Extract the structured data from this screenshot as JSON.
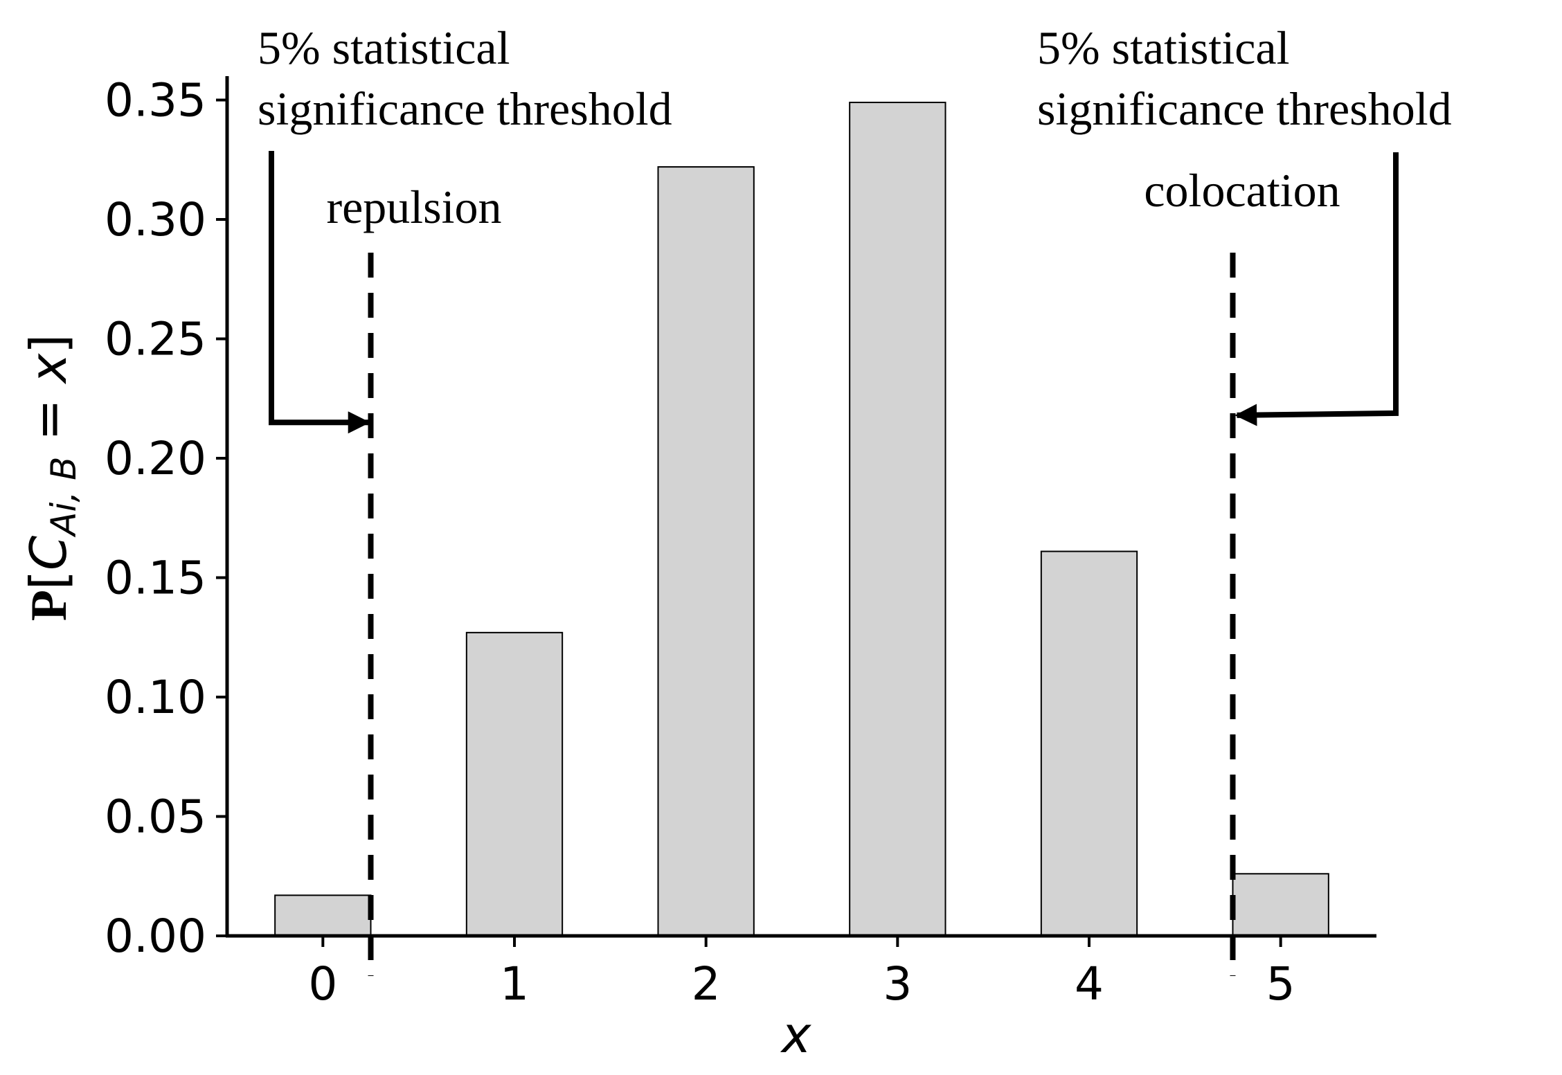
{
  "chart_data": {
    "type": "bar",
    "categories": [
      "0",
      "1",
      "2",
      "3",
      "4",
      "5"
    ],
    "x": [
      0,
      1,
      2,
      3,
      4,
      5
    ],
    "values": [
      0.017,
      0.127,
      0.322,
      0.349,
      0.161,
      0.026
    ],
    "xlabel": "x",
    "ylabel": {
      "prefix": "P",
      "open": "[",
      "var": "C",
      "subscript": "Ai, B",
      "eq": " = ",
      "value": "x",
      "close": "]"
    },
    "ylim": [
      0,
      0.36
    ],
    "xlim": [
      -0.5,
      5.5
    ],
    "yticks": [
      0.0,
      0.05,
      0.1,
      0.15,
      0.2,
      0.25,
      0.3,
      0.35
    ],
    "ytick_labels": [
      "0.00",
      "0.05",
      "0.10",
      "0.15",
      "0.20",
      "0.25",
      "0.30",
      "0.35"
    ],
    "bar_color": "#d3d3d3",
    "edge_color": "#000000",
    "grid": false,
    "thresholds": [
      {
        "x": 0.25,
        "label": "repulsion",
        "arrow_y": 0.215
      },
      {
        "x": 4.75,
        "label": "colocation",
        "arrow_y": 0.218
      }
    ],
    "annotations": {
      "left": {
        "line1": "5% statistical",
        "line2": "significance threshold"
      },
      "right": {
        "line1": "5% statistical",
        "line2": "significance threshold"
      }
    }
  }
}
